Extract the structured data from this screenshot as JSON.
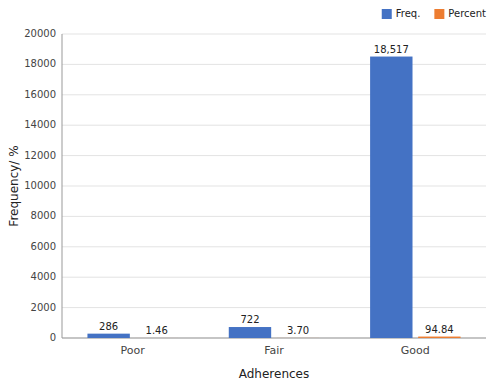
{
  "chart_data": {
    "type": "bar",
    "xlabel": "Adherences",
    "ylabel": "Frequency/ %",
    "categories": [
      "Poor",
      "Fair",
      "Good"
    ],
    "series": [
      {
        "name": "Freq.",
        "color": "#4472C4",
        "values": [
          286,
          722,
          18517
        ],
        "value_labels": [
          "286",
          "722",
          "18,517"
        ]
      },
      {
        "name": "Percent",
        "color": "#ED7D31",
        "values": [
          1.46,
          3.7,
          94.84
        ],
        "value_labels": [
          "1.46",
          "3.70",
          "94.84"
        ]
      }
    ],
    "ylim": [
      0,
      20000
    ],
    "yticks": [
      0,
      2000,
      4000,
      6000,
      8000,
      10000,
      12000,
      14000,
      16000,
      18000,
      20000
    ],
    "grid": true,
    "legend": "upper right",
    "data_labels": true
  }
}
